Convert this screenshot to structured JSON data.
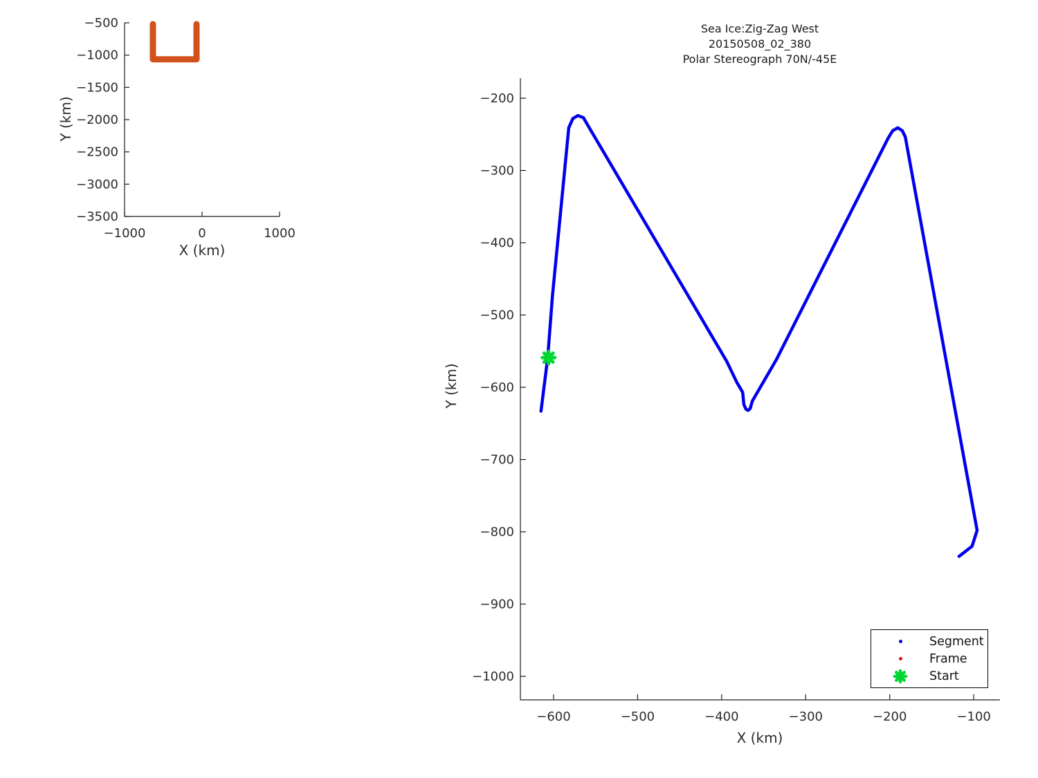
{
  "figure": {
    "background": "#ffffff",
    "axis_color": "#1a1a1a",
    "text_color": "#2b2b2b"
  },
  "chart_data": [
    {
      "id": "overview-map",
      "type": "line",
      "xlabel": "X (km)",
      "ylabel": "Y (km)",
      "xlim": [
        -1000,
        1000
      ],
      "ylim": [
        -3500,
        -500
      ],
      "xticks": [
        -1000,
        0,
        1000
      ],
      "yticks": [
        -500,
        -1000,
        -1500,
        -2000,
        -2500,
        -3000,
        -3500
      ],
      "grid": false,
      "series": [
        {
          "name": "flight-track-overview",
          "color": "#d2521e",
          "linewidth": 9,
          "points": [
            [
              -634,
              -520
            ],
            [
              -634,
              -1065
            ],
            [
              -71,
              -1065
            ],
            [
              -71,
              -520
            ]
          ]
        }
      ]
    },
    {
      "id": "segment-map",
      "type": "line",
      "title_lines": [
        "Sea Ice:Zig-Zag West",
        "20150508_02_380",
        "Polar Stereograph 70N/-45E"
      ],
      "xlabel": "X (km)",
      "ylabel": "Y (km)",
      "xlim": [
        -640,
        -69
      ],
      "ylim": [
        -1032,
        -169
      ],
      "xticks": [
        -600,
        -500,
        -400,
        -300,
        -200,
        -100
      ],
      "yticks": [
        -200,
        -300,
        -400,
        -500,
        -600,
        -700,
        -800,
        -900,
        -1000
      ],
      "grid": false,
      "series": [
        {
          "name": "Segment",
          "color": "#0000ee",
          "linewidth": 4.5,
          "points": [
            [
              -615,
              -633
            ],
            [
              -607,
              -559
            ],
            [
              -601.5,
              -475
            ],
            [
              -582,
              -241
            ],
            [
              -577,
              -228
            ],
            [
              -571,
              -224
            ],
            [
              -564.5,
              -227
            ],
            [
              -559,
              -238
            ],
            [
              -394,
              -564
            ],
            [
              -382,
              -593
            ],
            [
              -375,
              -607
            ],
            [
              -373.5,
              -624
            ],
            [
              -371,
              -630.5
            ],
            [
              -368.5,
              -632
            ],
            [
              -366,
              -629.5
            ],
            [
              -363.5,
              -619
            ],
            [
              -335,
              -562
            ],
            [
              -202,
              -255.5
            ],
            [
              -196.5,
              -245
            ],
            [
              -190.5,
              -241
            ],
            [
              -185,
              -245
            ],
            [
              -181.5,
              -253.5
            ],
            [
              -96,
              -798
            ],
            [
              -102,
              -820
            ],
            [
              -117.5,
              -834
            ]
          ]
        }
      ],
      "frame_point": {
        "x": -606,
        "y": -567,
        "color": "#e01010",
        "radius": 2.5
      },
      "start_point": {
        "x": -606,
        "y": -559,
        "color": "#00d832",
        "size": 18
      },
      "legend": {
        "position": "bottom-right",
        "entries": [
          {
            "label": "Segment",
            "color": "#0000ee",
            "marker": "dot"
          },
          {
            "label": "Frame",
            "color": "#e01010",
            "marker": "dot"
          },
          {
            "label": "Start",
            "color": "#00d832",
            "marker": "asterisk"
          }
        ]
      }
    }
  ]
}
